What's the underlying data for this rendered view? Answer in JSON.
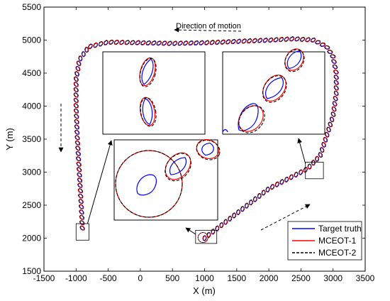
{
  "chart_data": {
    "type": "line",
    "title": "",
    "xlabel": "X (m)",
    "ylabel": "Y (m)",
    "xlim": [
      -1500,
      3500
    ],
    "ylim": [
      1500,
      5500
    ],
    "xticks": [
      -1500,
      -1000,
      -500,
      0,
      500,
      1000,
      1500,
      2000,
      2500,
      3000,
      3500
    ],
    "yticks": [
      1500,
      2000,
      2500,
      3000,
      3500,
      4000,
      4500,
      5000,
      5500
    ],
    "grid": false,
    "legend_position": "bottom-right",
    "annotation": "Direction of motion",
    "series": [
      {
        "name": "Target truth",
        "color": "#0000ff",
        "style": "solid"
      },
      {
        "name": "MCEOT-1",
        "color": "#ff0000",
        "style": "solid"
      },
      {
        "name": "MCEOT-2",
        "color": "#000000",
        "style": "dashed"
      }
    ],
    "trajectory": {
      "x": [
        1000,
        1200,
        1400,
        1600,
        1800,
        2000,
        2200,
        2400,
        2600,
        2800,
        2900,
        3000,
        3050,
        3050,
        3000,
        2900,
        2700,
        2400,
        2000,
        1500,
        1000,
        500,
        0,
        -500,
        -800,
        -950,
        -1000,
        -1000,
        -980,
        -950,
        -920,
        -900
      ],
      "y": [
        2000,
        2150,
        2300,
        2450,
        2600,
        2750,
        2850,
        2950,
        3050,
        3250,
        3550,
        3850,
        4200,
        4500,
        4750,
        4900,
        5000,
        5020,
        5000,
        4980,
        4960,
        4950,
        4960,
        4970,
        4900,
        4700,
        4400,
        4000,
        3500,
        3000,
        2500,
        2100
      ]
    },
    "zoom_boxes": [
      {
        "xmin": -1000,
        "xmax": -800,
        "ymin": 1970,
        "ymax": 2220
      },
      {
        "xmin": 860,
        "xmax": 1190,
        "ymin": 1920,
        "ymax": 2120
      },
      {
        "xmin": 2570,
        "xmax": 2850,
        "ymin": 2900,
        "ymax": 3150
      }
    ]
  }
}
